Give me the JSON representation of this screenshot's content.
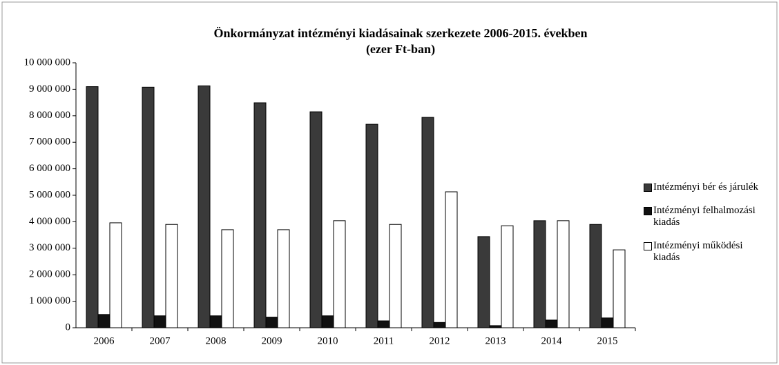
{
  "chart_data": {
    "type": "bar",
    "title": "Önkormányzat intézményi kiadásainak szerkezete 2006-2015. években",
    "subtitle": "(ezer Ft-ban)",
    "categories": [
      "2006",
      "2007",
      "2008",
      "2009",
      "2010",
      "2011",
      "2012",
      "2013",
      "2014",
      "2015"
    ],
    "series": [
      {
        "name": "Intézményi bér és járulék",
        "color": "#3a3a3a",
        "values": [
          9100000,
          9080000,
          9130000,
          8490000,
          8150000,
          7680000,
          7940000,
          3440000,
          4040000,
          3900000
        ]
      },
      {
        "name": "Intézményi felhalmozási kiadás",
        "color": "#111111",
        "values": [
          500000,
          450000,
          450000,
          400000,
          450000,
          260000,
          200000,
          80000,
          290000,
          370000
        ]
      },
      {
        "name": "Intézményi működési kiadás",
        "color": "#ffffff",
        "values": [
          3960000,
          3900000,
          3700000,
          3700000,
          4040000,
          3900000,
          5130000,
          3850000,
          4040000,
          2940000
        ]
      }
    ],
    "ylim": [
      0,
      10000000
    ],
    "yticks": [
      0,
      {
        "value": 1000000,
        "label": "1 000 000"
      },
      {
        "value": 2000000,
        "label": "2 000 000"
      },
      {
        "value": 3000000,
        "label": "3 000 000"
      },
      {
        "value": 4000000,
        "label": "4 000 000"
      },
      {
        "value": 5000000,
        "label": "5 000 000"
      },
      {
        "value": 6000000,
        "label": "6 000 000"
      },
      {
        "value": 7000000,
        "label": "7 000 000"
      },
      {
        "value": 8000000,
        "label": "8 000 000"
      },
      {
        "value": 9000000,
        "label": "9 000 000"
      },
      {
        "value": 10000000,
        "label": "10 000 000"
      }
    ],
    "legend": "right"
  }
}
